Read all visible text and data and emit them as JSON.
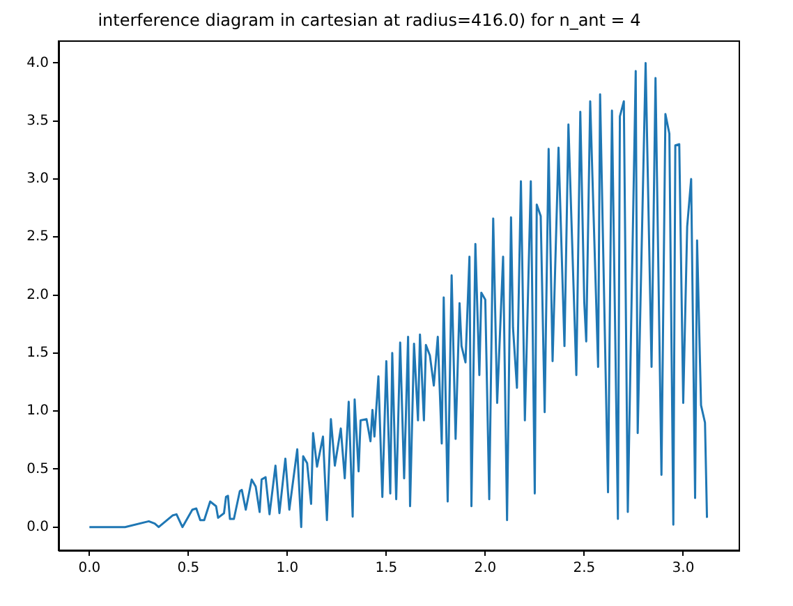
{
  "chart_data": {
    "type": "line",
    "title": "interference diagram in cartesian at radius=416.0) for n_ant = 4",
    "x": [
      0,
      0.18,
      0.3,
      0.33,
      0.35,
      0.42,
      0.44,
      0.47,
      0.52,
      0.54,
      0.56,
      0.58,
      0.61,
      0.64,
      0.65,
      0.68,
      0.69,
      0.7,
      0.71,
      0.73,
      0.76,
      0.77,
      0.79,
      0.82,
      0.84,
      0.86,
      0.87,
      0.89,
      0.91,
      0.94,
      0.96,
      0.99,
      1.01,
      1.05,
      1.07,
      1.08,
      1.1,
      1.12,
      1.13,
      1.15,
      1.18,
      1.2,
      1.22,
      1.24,
      1.27,
      1.29,
      1.31,
      1.33,
      1.34,
      1.36,
      1.37,
      1.4,
      1.42,
      1.43,
      1.44,
      1.46,
      1.48,
      1.5,
      1.52,
      1.53,
      1.55,
      1.57,
      1.59,
      1.61,
      1.62,
      1.64,
      1.66,
      1.67,
      1.69,
      1.7,
      1.72,
      1.74,
      1.76,
      1.78,
      1.79,
      1.81,
      1.83,
      1.85,
      1.87,
      1.88,
      1.9,
      1.92,
      1.93,
      1.95,
      1.97,
      1.98,
      2.0,
      2.02,
      2.04,
      2.06,
      2.09,
      2.11,
      2.13,
      2.14,
      2.16,
      2.18,
      2.2,
      2.23,
      2.25,
      2.26,
      2.28,
      2.3,
      2.32,
      2.34,
      2.37,
      2.4,
      2.42,
      2.46,
      2.48,
      2.5,
      2.51,
      2.53,
      2.57,
      2.58,
      2.62,
      2.64,
      2.67,
      2.68,
      2.7,
      2.72,
      2.76,
      2.77,
      2.81,
      2.84,
      2.86,
      2.89,
      2.91,
      2.93,
      2.95,
      2.96,
      2.98,
      3.0,
      3.02,
      3.04,
      3.06,
      3.07,
      3.09,
      3.11,
      3.12
    ],
    "series": [
      {
        "color": "#1f77b4",
        "values": [
          0,
          0,
          0.05,
          0.03,
          0,
          0.1,
          0.11,
          0,
          0.15,
          0.16,
          0.06,
          0.06,
          0.22,
          0.18,
          0.08,
          0.12,
          0.26,
          0.27,
          0.07,
          0.07,
          0.31,
          0.32,
          0.15,
          0.41,
          0.35,
          0.13,
          0.41,
          0.43,
          0.11,
          0.53,
          0.12,
          0.59,
          0.15,
          0.67,
          0,
          0.61,
          0.55,
          0.2,
          0.81,
          0.52,
          0.78,
          0.06,
          0.93,
          0.53,
          0.85,
          0.42,
          1.08,
          0.09,
          1.1,
          0.48,
          0.92,
          0.93,
          0.74,
          1.01,
          0.78,
          1.3,
          0.26,
          1.43,
          0.29,
          1.5,
          0.24,
          1.59,
          0.42,
          1.64,
          0.18,
          1.58,
          0.92,
          1.66,
          0.92,
          1.57,
          1.48,
          1.22,
          1.64,
          0.72,
          1.98,
          0.22,
          2.17,
          0.76,
          1.93,
          1.56,
          1.42,
          2.33,
          0.18,
          2.44,
          1.31,
          2.02,
          1.96,
          0.24,
          2.66,
          1.07,
          2.33,
          0.06,
          2.67,
          1.72,
          1.2,
          2.98,
          0.92,
          2.98,
          0.29,
          2.78,
          2.68,
          0.99,
          3.26,
          1.43,
          3.27,
          1.56,
          3.47,
          1.31,
          3.58,
          1.94,
          1.6,
          3.67,
          1.38,
          3.73,
          0.3,
          3.59,
          0.07,
          3.54,
          3.67,
          0.13,
          3.93,
          0.81,
          4.0,
          1.38,
          3.87,
          0.45,
          3.56,
          3.39,
          0.02,
          3.29,
          3.3,
          1.07,
          2.59,
          3.0,
          0.25,
          2.47,
          1.05,
          0.9,
          0.08
        ]
      }
    ],
    "xlim": [
      -0.156,
      3.28
    ],
    "ylim": [
      -0.2,
      4.19
    ],
    "xticks": [
      {
        "value": 0,
        "label": "0.0"
      },
      {
        "value": 0.5,
        "label": "0.5"
      },
      {
        "value": 1,
        "label": "1.0"
      },
      {
        "value": 1.5,
        "label": "1.5"
      },
      {
        "value": 2,
        "label": "2.0"
      },
      {
        "value": 2.5,
        "label": "2.5"
      },
      {
        "value": 3,
        "label": "3.0"
      }
    ],
    "yticks": [
      {
        "value": 0,
        "label": "0.0"
      },
      {
        "value": 0.5,
        "label": "0.5"
      },
      {
        "value": 1,
        "label": "1.0"
      },
      {
        "value": 1.5,
        "label": "1.5"
      },
      {
        "value": 2,
        "label": "2.0"
      },
      {
        "value": 2.5,
        "label": "2.5"
      },
      {
        "value": 3,
        "label": "3.0"
      },
      {
        "value": 3.5,
        "label": "3.5"
      },
      {
        "value": 4,
        "label": "4.0"
      }
    ],
    "grid": false,
    "legend": false,
    "marker": "none",
    "line_style": "solid"
  }
}
